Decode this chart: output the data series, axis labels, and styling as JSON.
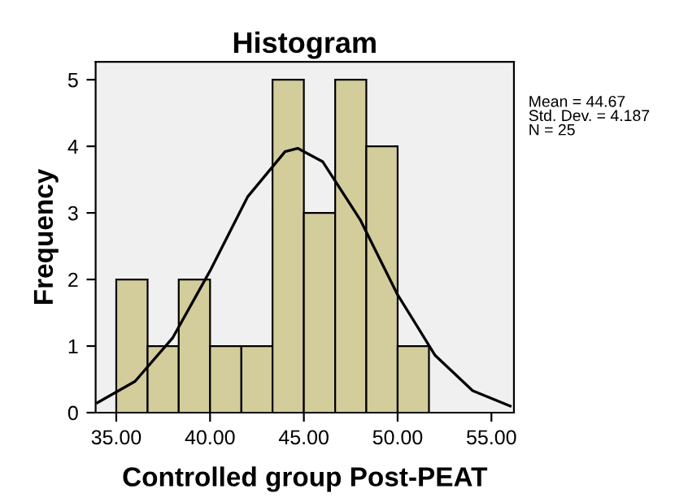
{
  "chart_data": {
    "type": "histogram",
    "title": "Histogram",
    "xlabel": "Controlled group Post-PEAT",
    "ylabel": "Frequency",
    "bins": [
      35,
      36.67,
      38.33,
      40,
      41.67,
      43.33,
      45,
      46.67,
      48.33,
      50,
      51.67
    ],
    "values": [
      2,
      1,
      2,
      1,
      1,
      5,
      3,
      5,
      4,
      1
    ],
    "color": "#d3cd9c",
    "series": [
      {
        "type": "line",
        "color": "#000000",
        "x": [
          34,
          36,
          38,
          40,
          42,
          44,
          44.67,
          46,
          48,
          50,
          52,
          54,
          56
        ],
        "values": [
          0.15,
          0.47,
          1.12,
          2.13,
          3.24,
          3.92,
          3.97,
          3.77,
          2.9,
          1.77,
          0.86,
          0.33,
          0.1
        ]
      }
    ],
    "xlim": [
      33.9,
      56.2
    ],
    "ylim": [
      0,
      5.27
    ],
    "xticks": [
      {
        "value": 35,
        "label": "35.00"
      },
      {
        "value": 40,
        "label": "40.00"
      },
      {
        "value": 45,
        "label": "45.00"
      },
      {
        "value": 50,
        "label": "50.00"
      },
      {
        "value": 55,
        "label": "55.00"
      }
    ],
    "yticks": [
      0,
      1,
      2,
      3,
      4,
      5
    ],
    "annotations": [
      "Mean = 44.67\nStd. Dev. = 4.187\nN = 25"
    ]
  }
}
